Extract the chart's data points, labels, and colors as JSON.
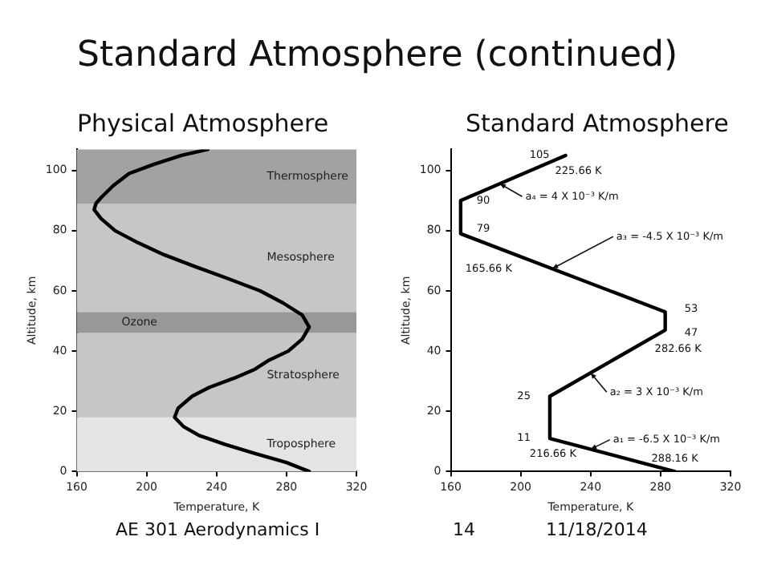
{
  "chart_data": [
    {
      "type": "line",
      "title": "Standard Atmosphere (continued)",
      "subtitle": "Physical Atmosphere",
      "xlabel": "Temperature, K",
      "ylabel": "Altitude, km",
      "xlim": [
        160,
        320
      ],
      "xticks": [
        160,
        200,
        240,
        280,
        320
      ],
      "ylim": [
        0,
        107
      ],
      "yticks": [
        0,
        20,
        40,
        60,
        80,
        100
      ],
      "grid": false,
      "legend": false,
      "marker": "none",
      "series": [
        {
          "color": "#000000",
          "x": [
            293,
            280,
            262,
            245,
            230,
            221,
            216,
            218,
            226,
            236,
            250,
            262,
            270,
            281,
            289,
            293,
            289,
            278,
            265,
            247,
            228,
            210,
            195,
            182,
            174,
            170,
            171,
            174,
            181,
            190,
            204,
            220,
            235
          ],
          "values": [
            0,
            3,
            6,
            9,
            12,
            15,
            18,
            21,
            25,
            28,
            31,
            34,
            37,
            40,
            44,
            48,
            52,
            56,
            60,
            64,
            68,
            72,
            76,
            80,
            84,
            87,
            89,
            91,
            95,
            99,
            102,
            105,
            107
          ]
        }
      ],
      "bands": [
        {
          "axis": "y",
          "from": 0,
          "to": 18,
          "label": "Troposphere",
          "color": "#e4e4e4"
        },
        {
          "axis": "y",
          "from": 18,
          "to": 46,
          "label": "Stratosphere",
          "color": "#c6c6c6"
        },
        {
          "axis": "y",
          "from": 46,
          "to": 53,
          "label": "Ozone",
          "color": "#989898"
        },
        {
          "axis": "y",
          "from": 53,
          "to": 89,
          "label": "Mesosphere",
          "color": "#c6c6c6"
        },
        {
          "axis": "y",
          "from": 89,
          "to": 107,
          "label": "Thermosphere",
          "color": "#a2a2a2"
        }
      ]
    },
    {
      "type": "line",
      "title": "Standard Atmosphere",
      "xlabel": "Temperature, K",
      "ylabel": "Altitude, km",
      "xlim": [
        160,
        320
      ],
      "xticks": [
        160,
        200,
        240,
        280,
        320
      ],
      "ylim": [
        0,
        107
      ],
      "yticks": [
        0,
        20,
        40,
        60,
        80,
        100
      ],
      "grid": false,
      "legend": false,
      "marker": "none",
      "series": [
        {
          "color": "#000000",
          "x": [
            288.16,
            216.66,
            216.66,
            282.66,
            282.66,
            165.66,
            165.66,
            225.66
          ],
          "values": [
            0,
            11,
            25,
            47,
            53,
            79,
            90,
            105
          ]
        }
      ],
      "annotations": [
        {
          "text": "105",
          "x": 225.66,
          "y": 105
        },
        {
          "text": "225.66 K",
          "x": 225.66,
          "y": 105
        },
        {
          "text": "90",
          "x": 165.66,
          "y": 90
        },
        {
          "text": "79",
          "x": 165.66,
          "y": 79
        },
        {
          "text": "165.66 K",
          "x": 165.66,
          "y": 79
        },
        {
          "text": "53",
          "x": 282.66,
          "y": 53
        },
        {
          "text": "47",
          "x": 282.66,
          "y": 47
        },
        {
          "text": "282.66 K",
          "x": 282.66,
          "y": 47
        },
        {
          "text": "25",
          "x": 216.66,
          "y": 25
        },
        {
          "text": "11",
          "x": 216.66,
          "y": 11
        },
        {
          "text": "216.66 K",
          "x": 216.66,
          "y": 11
        },
        {
          "text": "288.16 K",
          "x": 288.16,
          "y": 0
        },
        {
          "text": "a₄ = 4 X 10⁻³ K/m",
          "x": 188,
          "y": 95.6
        },
        {
          "text": "a₃ = -4.5 X 10⁻³ K/m",
          "x": 218,
          "y": 67.4
        },
        {
          "text": "a₂ = 3 X 10⁻³ K/m",
          "x": 240,
          "y": 32.8
        },
        {
          "text": "a₁ = -6.5 X 10⁻³ K/m",
          "x": 240,
          "y": 7.4
        },
        "AE 301 Aerodynamics I",
        "14",
        "11/18/2014"
      ]
    }
  ]
}
